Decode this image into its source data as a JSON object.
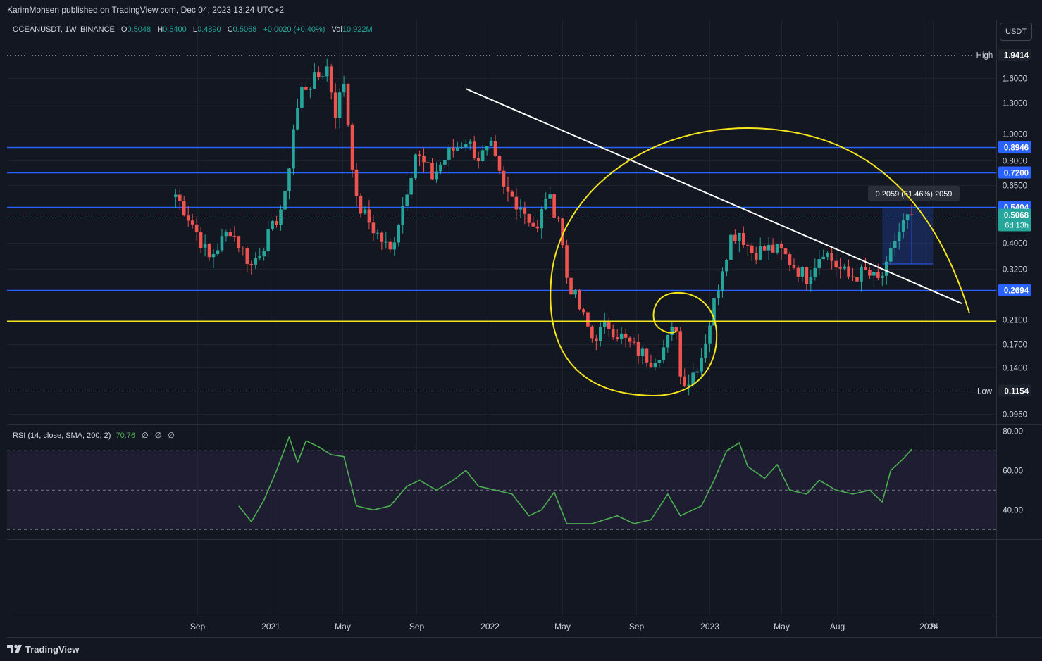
{
  "header": {
    "publisher": "KarimMohsen published on TradingView.com, Dec 04, 2023 13:24 UTC+2",
    "symbol": "OCEANUSDT, 1W, BINANCE",
    "ohlc": [
      {
        "k": "O",
        "v": "0.5048"
      },
      {
        "k": "H",
        "v": "0.5400"
      },
      {
        "k": "L",
        "v": "0.4890"
      },
      {
        "k": "C",
        "v": "0.5068"
      }
    ],
    "change": "+0.0020 (+0.40%)",
    "vol_label": "Vol",
    "vol_value": "10.922M",
    "currency": "USDT"
  },
  "rsi_legend": {
    "label": "RSI (14, close, SMA, 200, 2)",
    "value": "70.76",
    "hidden": [
      "∅",
      "∅",
      "∅"
    ]
  },
  "footer": {
    "brand": "TradingView",
    "logo_icon": "tradingview-logo-icon"
  },
  "colors": {
    "background": "#131722",
    "up": "#26a69a",
    "down": "#ef5350",
    "level_line": "#2962ff",
    "yellow": "#f5e51b",
    "trendline": "#ffffff",
    "rsi_line": "#4caf50",
    "rsi_band": "#7e57c2",
    "current_price": "#26a69a"
  },
  "chart_data": {
    "type": "candlestick",
    "scale": "log",
    "y_ticks": [
      1.6,
      1.3,
      1.0,
      0.8,
      0.65,
      0.4,
      0.32,
      0.21,
      0.17,
      0.14,
      0.095
    ],
    "y_tick_labels": [
      "1.6000",
      "1.3000",
      "1.0000",
      "0.8000",
      "0.6500",
      "0.4000",
      "0.3200",
      "0.2100",
      "0.1700",
      "0.1400",
      "0.0950"
    ],
    "x_ticks": [
      {
        "label": "Sep",
        "date": "2020-09-01"
      },
      {
        "label": "2021",
        "date": "2021-01-01"
      },
      {
        "label": "May",
        "date": "2021-05-01"
      },
      {
        "label": "Sep",
        "date": "2021-09-01"
      },
      {
        "label": "2022",
        "date": "2022-01-01"
      },
      {
        "label": "May",
        "date": "2022-05-01"
      },
      {
        "label": "Sep",
        "date": "2022-09-01"
      },
      {
        "label": "2023",
        "date": "2023-01-01"
      },
      {
        "label": "May",
        "date": "2023-05-01"
      },
      {
        "label": "Aug",
        "date": "2023-08-01"
      },
      {
        "label": "2024",
        "date": "2024-01-01"
      },
      {
        "label": "8",
        "date": "2024-01-08"
      }
    ],
    "high_label": "High",
    "high": 1.9414,
    "high_text": "1.9414",
    "low_label": "Low",
    "low": 0.1154,
    "low_text": "0.1154",
    "levels": [
      {
        "value": 0.8946,
        "label": "0.8946"
      },
      {
        "value": 0.72,
        "label": "0.7200"
      },
      {
        "value": 0.5404,
        "label": "0.5404"
      },
      {
        "value": 0.2694,
        "label": "0.2694"
      }
    ],
    "support_line": 0.2075,
    "current_price": {
      "value": 0.5068,
      "label": "0.5068",
      "countdown": "6d 13h"
    },
    "measure_label": "0.2059 (61.46%) 2059",
    "trendline": [
      {
        "date": "2021-11-22",
        "price": 1.46
      },
      {
        "date": "2024-02-25",
        "price": 0.24
      }
    ],
    "series": [
      {
        "name": "OCEANUSDT",
        "anchors": [
          [
            "2020-07-27",
            0.6
          ],
          [
            "2020-08-24",
            0.47
          ],
          [
            "2020-09-21",
            0.35
          ],
          [
            "2020-10-26",
            0.45
          ],
          [
            "2020-11-30",
            0.33
          ],
          [
            "2021-01-04",
            0.45
          ],
          [
            "2021-01-25",
            0.58
          ],
          [
            "2021-02-08",
            1.05
          ],
          [
            "2021-02-22",
            1.45
          ],
          [
            "2021-03-22",
            1.62
          ],
          [
            "2021-04-05",
            1.75
          ],
          [
            "2021-04-19",
            1.2
          ],
          [
            "2021-05-03",
            1.55
          ],
          [
            "2021-05-24",
            0.56
          ],
          [
            "2021-06-21",
            0.45
          ],
          [
            "2021-07-19",
            0.37
          ],
          [
            "2021-08-09",
            0.55
          ],
          [
            "2021-08-30",
            0.85
          ],
          [
            "2021-09-27",
            0.7
          ],
          [
            "2021-10-25",
            0.85
          ],
          [
            "2021-11-22",
            0.95
          ],
          [
            "2021-12-13",
            0.82
          ],
          [
            "2022-01-03",
            0.88
          ],
          [
            "2022-01-24",
            0.62
          ],
          [
            "2022-02-21",
            0.55
          ],
          [
            "2022-03-21",
            0.44
          ],
          [
            "2022-04-04",
            0.6
          ],
          [
            "2022-04-25",
            0.5
          ],
          [
            "2022-05-09",
            0.3
          ],
          [
            "2022-05-30",
            0.23
          ],
          [
            "2022-06-20",
            0.18
          ],
          [
            "2022-07-18",
            0.2
          ],
          [
            "2022-08-15",
            0.175
          ],
          [
            "2022-09-05",
            0.16
          ],
          [
            "2022-09-26",
            0.15
          ],
          [
            "2022-10-17",
            0.165
          ],
          [
            "2022-11-07",
            0.2
          ],
          [
            "2022-11-14",
            0.13
          ],
          [
            "2022-11-28",
            0.125
          ],
          [
            "2022-12-19",
            0.155
          ],
          [
            "2023-01-02",
            0.205
          ],
          [
            "2023-01-23",
            0.33
          ],
          [
            "2023-02-06",
            0.42
          ],
          [
            "2023-02-20",
            0.44
          ],
          [
            "2023-03-13",
            0.37
          ],
          [
            "2023-04-10",
            0.38
          ],
          [
            "2023-05-01",
            0.37
          ],
          [
            "2023-05-22",
            0.33
          ],
          [
            "2023-06-12",
            0.3
          ],
          [
            "2023-07-10",
            0.38
          ],
          [
            "2023-07-31",
            0.33
          ],
          [
            "2023-08-21",
            0.3
          ],
          [
            "2023-09-18",
            0.31
          ],
          [
            "2023-10-09",
            0.29
          ],
          [
            "2023-10-23",
            0.32
          ],
          [
            "2023-11-06",
            0.41
          ],
          [
            "2023-11-20",
            0.47
          ],
          [
            "2023-12-04",
            0.5068
          ]
        ]
      }
    ],
    "rsi": {
      "y_ticks": [
        80,
        60,
        40
      ],
      "y_tick_labels": [
        "80.00",
        "60.00",
        "40.00"
      ],
      "band": [
        30,
        70
      ],
      "midline": 50,
      "values": [
        [
          "2020-11-09",
          42
        ],
        [
          "2020-11-30",
          34
        ],
        [
          "2020-12-21",
          45
        ],
        [
          "2021-01-11",
          60
        ],
        [
          "2021-02-01",
          77
        ],
        [
          "2021-02-15",
          64
        ],
        [
          "2021-03-01",
          75
        ],
        [
          "2021-03-22",
          72
        ],
        [
          "2021-04-12",
          68
        ],
        [
          "2021-05-03",
          67
        ],
        [
          "2021-05-24",
          42
        ],
        [
          "2021-06-21",
          40
        ],
        [
          "2021-07-19",
          42
        ],
        [
          "2021-08-16",
          52
        ],
        [
          "2021-09-06",
          55
        ],
        [
          "2021-10-04",
          50
        ],
        [
          "2021-11-01",
          55
        ],
        [
          "2021-11-22",
          60
        ],
        [
          "2021-12-13",
          52
        ],
        [
          "2022-01-10",
          50
        ],
        [
          "2022-02-07",
          48
        ],
        [
          "2022-03-07",
          37
        ],
        [
          "2022-03-28",
          40
        ],
        [
          "2022-04-18",
          49
        ],
        [
          "2022-05-09",
          33
        ],
        [
          "2022-06-20",
          33
        ],
        [
          "2022-08-01",
          37
        ],
        [
          "2022-08-29",
          33
        ],
        [
          "2022-09-26",
          35
        ],
        [
          "2022-10-24",
          48
        ],
        [
          "2022-11-14",
          37
        ],
        [
          "2022-12-19",
          42
        ],
        [
          "2023-01-09",
          55
        ],
        [
          "2023-01-30",
          70
        ],
        [
          "2023-02-20",
          74
        ],
        [
          "2023-03-06",
          62
        ],
        [
          "2023-04-03",
          56
        ],
        [
          "2023-04-24",
          63
        ],
        [
          "2023-05-15",
          50
        ],
        [
          "2023-06-12",
          48
        ],
        [
          "2023-07-03",
          55
        ],
        [
          "2023-07-31",
          50
        ],
        [
          "2023-08-28",
          48
        ],
        [
          "2023-09-25",
          50
        ],
        [
          "2023-10-16",
          44
        ],
        [
          "2023-10-30",
          60
        ],
        [
          "2023-11-20",
          66
        ],
        [
          "2023-12-04",
          70.76
        ]
      ]
    }
  }
}
